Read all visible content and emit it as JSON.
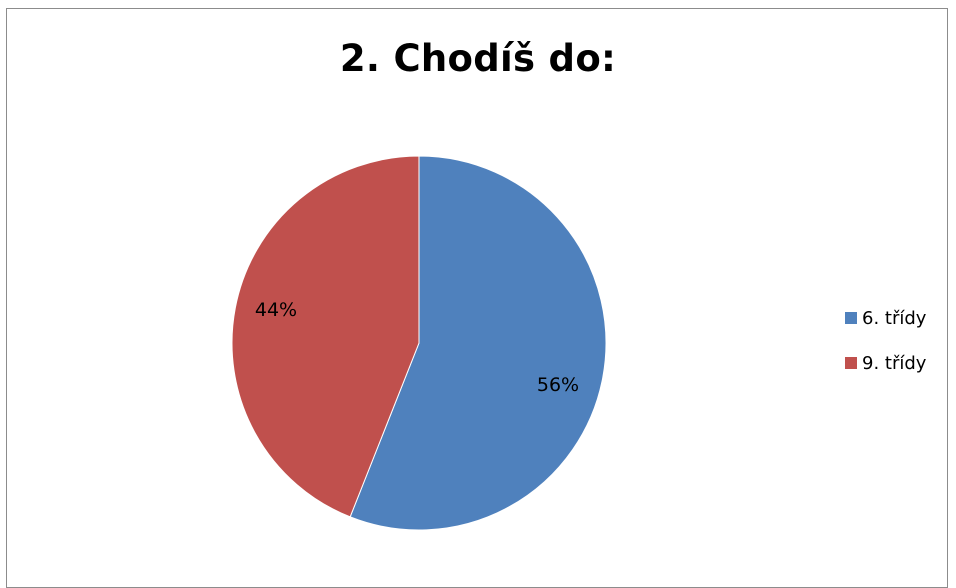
{
  "chart_data": {
    "type": "pie",
    "title": "2. Chodíš do:",
    "categories": [
      "6. třídy",
      "9. třídy"
    ],
    "values": [
      56,
      44
    ],
    "data_labels": [
      "56%",
      "44%"
    ],
    "colors": [
      "#4f81bd",
      "#c0504d"
    ],
    "legend_position": "right"
  }
}
